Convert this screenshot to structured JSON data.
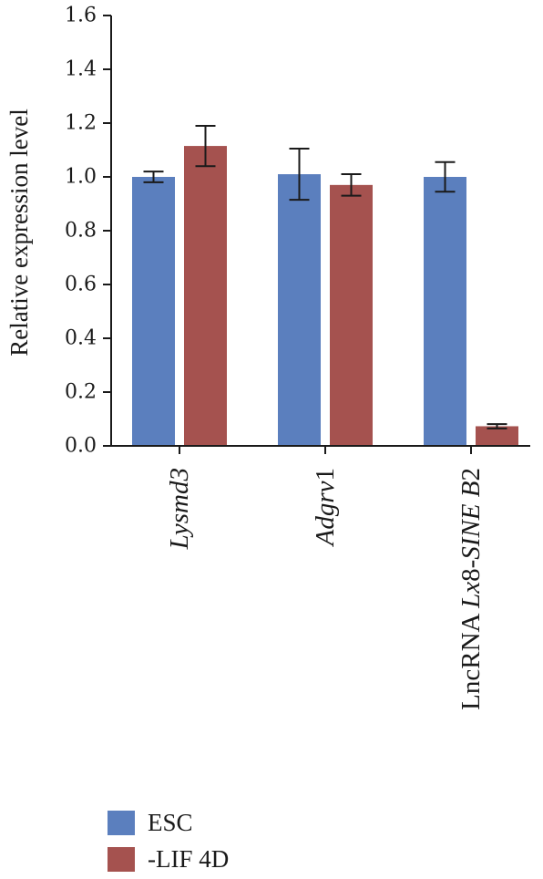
{
  "chart_data": {
    "type": "bar",
    "ylabel": "Relative expression level",
    "ylim": [
      0,
      1.6
    ],
    "yticks": [
      "0.0",
      "0.2",
      "0.4",
      "0.6",
      "0.8",
      "1.0",
      "1.2",
      "1.4",
      "1.6"
    ],
    "categories": [
      {
        "prefix": "",
        "italic": "Lysmd3",
        "suffix": ""
      },
      {
        "prefix": "",
        "italic": "Adgrv",
        "suffix": "1"
      },
      {
        "prefix": "LncRNA ",
        "italic": "Lx",
        "suffix": "8-",
        "italic2": "SINE B",
        "suffix2": "2"
      }
    ],
    "series": [
      {
        "name": "ESC",
        "color": "#5b7fbe",
        "values": [
          1.0,
          1.01,
          1.0
        ],
        "errors": [
          0.02,
          0.095,
          0.055
        ]
      },
      {
        "name": "-LIF 4D",
        "color": "#a5524f",
        "values": [
          1.115,
          0.97,
          0.073
        ],
        "errors": [
          0.075,
          0.04,
          0.008
        ]
      }
    ],
    "grid": false,
    "legend_position": "bottom-left"
  }
}
